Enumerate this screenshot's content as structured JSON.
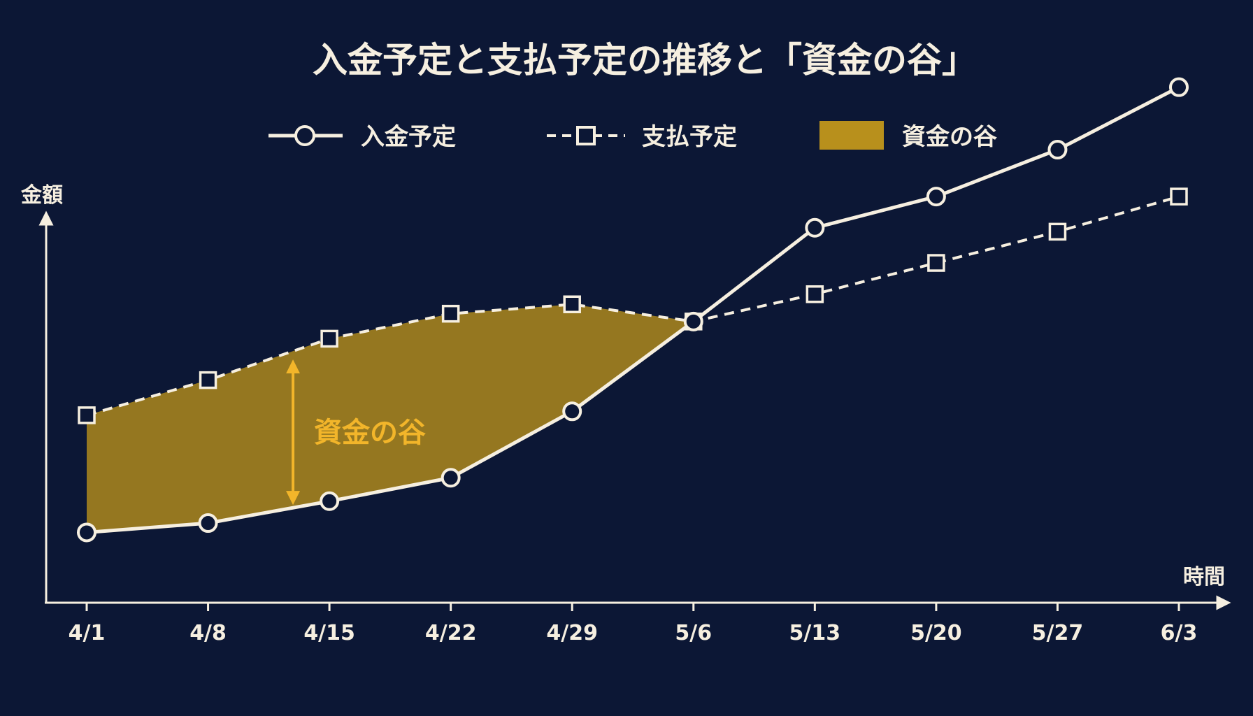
{
  "chart_data": {
    "type": "line",
    "title": "入金予定と支払予定の推移と「資金の谷」",
    "xlabel": "時間",
    "ylabel": "金額",
    "categories": [
      "4/1",
      "4/8",
      "4/15",
      "4/22",
      "4/29",
      "5/6",
      "5/13",
      "5/20",
      "5/27",
      "6/3"
    ],
    "series": [
      {
        "name": "入金予定",
        "style": "solid-circle",
        "values": [
          9,
          10.2,
          13,
          16,
          24.5,
          36,
          48,
          52,
          58,
          66
        ]
      },
      {
        "name": "支払予定",
        "style": "dashed-square",
        "values": [
          24,
          28.5,
          33.8,
          37,
          38.2,
          36,
          39.5,
          43.5,
          47.5,
          52
        ]
      }
    ],
    "ylim": [
      0,
      70
    ],
    "grid": false,
    "legend_position": "top-center",
    "area": {
      "name": "資金の谷",
      "between": [
        "支払予定",
        "入金予定"
      ],
      "x_range": [
        "4/1",
        "5/6"
      ],
      "color": "#b8901c"
    },
    "annotation": {
      "text": "資金の谷",
      "color": "#f2b52a"
    },
    "colors": {
      "background": "#0c1735",
      "line": "#f6efe0",
      "area": "#b8901c",
      "annotation": "#f2b52a"
    }
  }
}
